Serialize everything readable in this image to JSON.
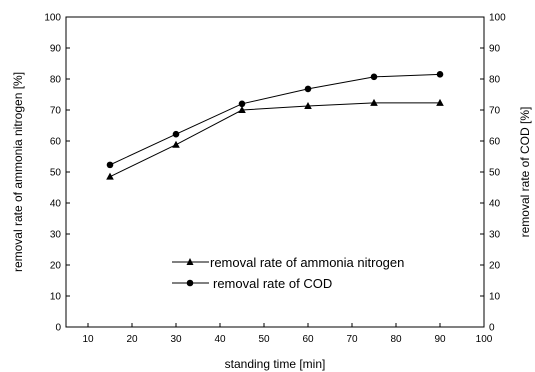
{
  "chart_data": {
    "type": "line",
    "title": "",
    "xlabel": "standing time [min]",
    "ylabel_left": "removal rate of ammonia nitrogen [%]",
    "ylabel_right": "removal rate of COD [%]",
    "xlim": [
      5,
      100
    ],
    "ylim": [
      0,
      100
    ],
    "xticks": [
      10,
      20,
      30,
      40,
      50,
      60,
      70,
      80,
      90,
      100
    ],
    "yticks": [
      0,
      10,
      20,
      30,
      40,
      50,
      60,
      70,
      80,
      90,
      100
    ],
    "grid": false,
    "legend_position": "lower-right",
    "series": [
      {
        "name": "removal rate of ammonia nitrogen",
        "marker": "triangle",
        "x": [
          15,
          30,
          45,
          60,
          75,
          90
        ],
        "y": [
          48.5,
          58.8,
          70.0,
          71.3,
          72.3,
          72.3
        ]
      },
      {
        "name": "removal rate of COD",
        "marker": "circle",
        "x": [
          15,
          30,
          45,
          60,
          75,
          90
        ],
        "y": [
          52.3,
          62.2,
          72.0,
          76.8,
          80.7,
          81.5
        ]
      }
    ]
  }
}
